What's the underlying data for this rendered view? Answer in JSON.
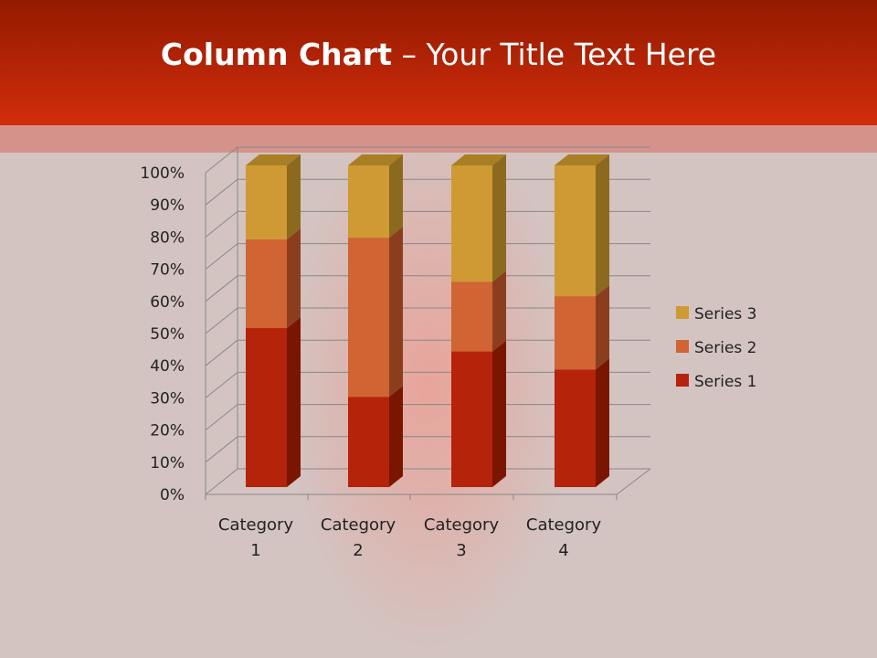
{
  "title": {
    "bold": "Column Chart",
    "rest": " – Your Title Text Here"
  },
  "chart_data": {
    "type": "bar",
    "stacking": "percent",
    "3d": true,
    "categories": [
      "Category 1",
      "Category 2",
      "Category 3",
      "Category 4"
    ],
    "category_lines": [
      [
        "Category",
        "1"
      ],
      [
        "Category",
        "2"
      ],
      [
        "Category",
        "3"
      ],
      [
        "Category",
        "4"
      ]
    ],
    "series": [
      {
        "name": "Series 1",
        "values": [
          4.3,
          2.5,
          3.5,
          4.5
        ],
        "color": "#b5230a",
        "side": "#7a1600",
        "top": "#c8401f"
      },
      {
        "name": "Series 2",
        "values": [
          2.4,
          4.4,
          1.8,
          2.8
        ],
        "color": "#d06432",
        "side": "#8a3e1e",
        "top": "#dc7a48"
      },
      {
        "name": "Series 3",
        "values": [
          2,
          2,
          3,
          5
        ],
        "color": "#cf9a33",
        "side": "#8b6a20",
        "top": "#a87f25"
      }
    ],
    "yticks": [
      "0%",
      "10%",
      "20%",
      "30%",
      "40%",
      "50%",
      "60%",
      "70%",
      "80%",
      "90%",
      "100%"
    ],
    "ylim": [
      0,
      100
    ],
    "grid": true,
    "legend": "right"
  }
}
